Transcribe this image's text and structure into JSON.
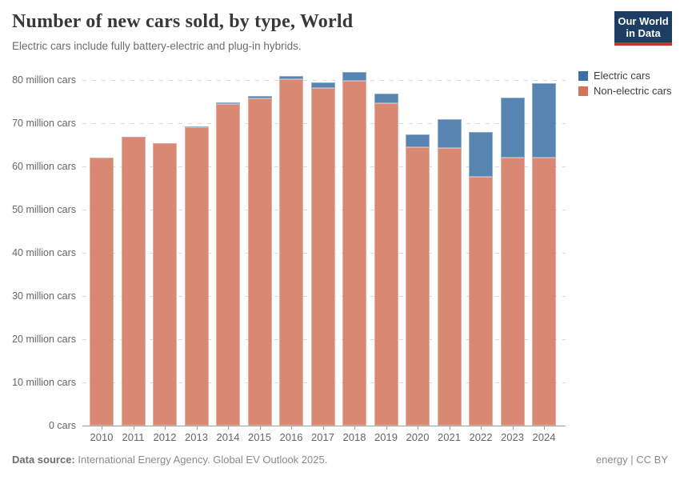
{
  "header": {
    "title": "Number of new cars sold, by type, World",
    "subtitle": "Electric cars include fully battery-electric and plug-in hybrids.",
    "logo": {
      "line1": "Our World",
      "line2": "in Data",
      "bg_color": "#1d3d63",
      "accent_color": "#c5342b"
    }
  },
  "legend": {
    "position": "right",
    "items": [
      {
        "label": "Electric cars",
        "color": "#3b6ea5"
      },
      {
        "label": "Non-electric cars",
        "color": "#d2735a"
      }
    ]
  },
  "chart_data": {
    "type": "bar",
    "stacked": true,
    "title": "Number of new cars sold, by type, World",
    "unit": "million cars",
    "categories": [
      2010,
      2011,
      2012,
      2013,
      2014,
      2015,
      2016,
      2017,
      2018,
      2019,
      2020,
      2021,
      2022,
      2023,
      2024
    ],
    "series": [
      {
        "name": "Electric cars",
        "color": "#3b6ea5",
        "fill_opacity": 0.85,
        "values": [
          0.01,
          0.04,
          0.12,
          0.2,
          0.35,
          0.55,
          0.75,
          1.2,
          2.1,
          2.3,
          3.0,
          6.6,
          10.4,
          13.9,
          17.3
        ]
      },
      {
        "name": "Non-electric cars",
        "color": "#d2735a",
        "fill_opacity": 0.85,
        "values": [
          62.0,
          66.9,
          65.3,
          69.0,
          74.4,
          75.7,
          80.1,
          78.2,
          79.8,
          74.6,
          64.4,
          64.3,
          57.6,
          62.1,
          62.0
        ]
      }
    ],
    "ylim": [
      0,
      80
    ],
    "yticks": [
      {
        "value": 0,
        "label": "0 cars"
      },
      {
        "value": 10,
        "label": "10 million cars"
      },
      {
        "value": 20,
        "label": "20 million cars"
      },
      {
        "value": 30,
        "label": "30 million cars"
      },
      {
        "value": 40,
        "label": "40 million cars"
      },
      {
        "value": 50,
        "label": "50 million cars"
      },
      {
        "value": 60,
        "label": "60 million cars"
      },
      {
        "value": 70,
        "label": "70 million cars"
      },
      {
        "value": 80,
        "label": "80 million cars"
      }
    ],
    "grid": "dashed horizontal",
    "legend_position": "right"
  },
  "footer": {
    "datasource_label": "Data source:",
    "datasource_text": " International Energy Agency. Global EV Outlook 2025.",
    "rights": "energy | CC BY"
  }
}
